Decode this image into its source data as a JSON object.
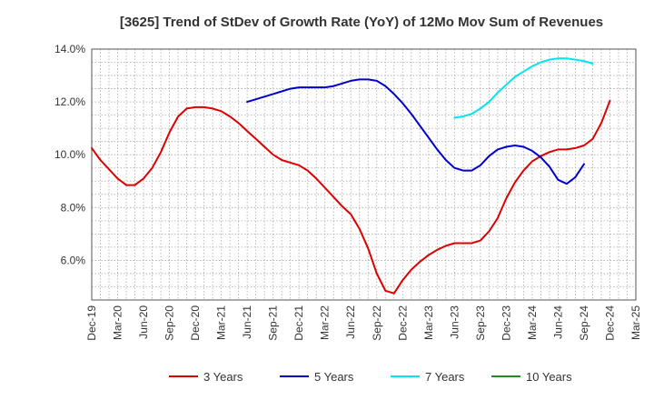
{
  "chart_data": {
    "type": "line",
    "title": "[3625]  Trend of StDev of Growth Rate (YoY) of 12Mo Mov Sum of Revenues",
    "xlabel": "",
    "ylabel": "",
    "ylim": [
      4.5,
      14.0
    ],
    "y_ticks": [
      6.0,
      8.0,
      10.0,
      12.0,
      14.0
    ],
    "y_tick_labels": [
      "6.0%",
      "8.0%",
      "10.0%",
      "12.0%",
      "14.0%"
    ],
    "x_tick_labels": [
      "Dec-19",
      "Mar-20",
      "Jun-20",
      "Sep-20",
      "Dec-20",
      "Mar-21",
      "Jun-21",
      "Sep-21",
      "Dec-21",
      "Mar-22",
      "Jun-22",
      "Sep-22",
      "Dec-22",
      "Mar-23",
      "Jun-23",
      "Sep-23",
      "Dec-23",
      "Mar-24",
      "Jun-24",
      "Sep-24",
      "Dec-24",
      "Mar-25"
    ],
    "x_range_months": [
      0,
      63
    ],
    "grid": true,
    "legend_position": "bottom",
    "series": [
      {
        "name": "3 Years",
        "color": "#dd0000",
        "start_month": 0,
        "values": [
          10.25,
          9.8,
          9.45,
          9.1,
          8.85,
          8.85,
          9.1,
          9.5,
          10.1,
          10.85,
          11.45,
          11.75,
          11.8,
          11.8,
          11.75,
          11.65,
          11.45,
          11.2,
          10.9,
          10.6,
          10.3,
          10.0,
          9.8,
          9.7,
          9.6,
          9.4,
          9.1,
          8.75,
          8.4,
          8.05,
          7.75,
          7.2,
          6.45,
          5.5,
          4.85,
          4.75,
          5.25,
          5.65,
          5.95,
          6.2,
          6.4,
          6.55,
          6.65,
          6.65,
          6.65,
          6.75,
          7.1,
          7.6,
          8.35,
          8.95,
          9.4,
          9.75,
          9.95,
          10.1,
          10.2,
          10.2,
          10.25,
          10.35,
          10.6,
          11.2,
          12.05
        ]
      },
      {
        "name": "5 Years",
        "color": "#0000cc",
        "start_month": 18,
        "values": [
          12.0,
          12.1,
          12.2,
          12.3,
          12.4,
          12.5,
          12.55,
          12.55,
          12.55,
          12.55,
          12.6,
          12.7,
          12.8,
          12.85,
          12.85,
          12.8,
          12.6,
          12.3,
          11.95,
          11.55,
          11.1,
          10.65,
          10.2,
          9.8,
          9.5,
          9.4,
          9.4,
          9.6,
          9.95,
          10.2,
          10.3,
          10.35,
          10.3,
          10.15,
          9.9,
          9.55,
          9.05,
          8.9,
          9.15,
          9.65
        ]
      },
      {
        "name": "7 Years",
        "color": "#00e5ee",
        "start_month": 42,
        "values": [
          11.4,
          11.45,
          11.55,
          11.75,
          12.0,
          12.35,
          12.65,
          12.95,
          13.15,
          13.35,
          13.5,
          13.6,
          13.65,
          13.65,
          13.6,
          13.55,
          13.45
        ]
      },
      {
        "name": "10 Years",
        "color": "#228b22",
        "start_month": 60,
        "values": []
      }
    ]
  }
}
